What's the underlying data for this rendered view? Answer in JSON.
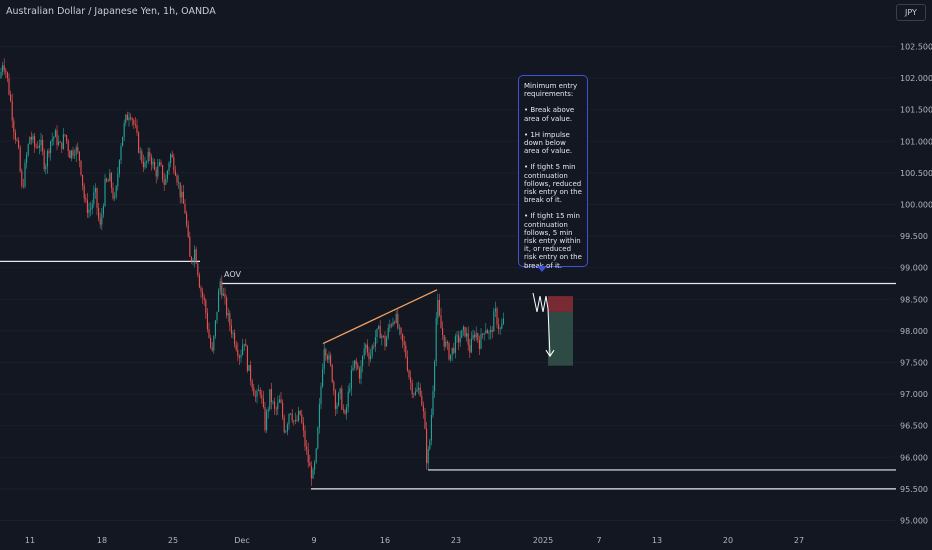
{
  "header": {
    "title": "Australian Dollar / Japanese Yen, 1h, OANDA",
    "currency": "JPY"
  },
  "annotations": {
    "aov_label": "AOV",
    "note_paragraphs": [
      "Minimum entry requirements:",
      "• Break above area of value.",
      "• 1H impulse down below area of value.",
      "• If tight 5 min continuation follows, reduced risk entry on the break of it.",
      "• If tight 15 min continuation follows, 5 min risk entry within it, or reduced risk entry on the break of it."
    ]
  },
  "colors": {
    "background": "#131722",
    "up_candle": "#26a69a",
    "down_candle": "#ef5350",
    "level_line": "#e6e8ee",
    "trendline": "#f5a25d",
    "stop_zone": "#7a2a33",
    "target_zone": "#2e4a44"
  },
  "chart_data": {
    "type": "candlestick",
    "ylim": [
      94.95,
      102.8
    ],
    "y_ticks": [
      "102.500",
      "102.000",
      "101.500",
      "101.000",
      "100.500",
      "100.000",
      "99.500",
      "99.000",
      "98.500",
      "98.000",
      "97.500",
      "97.000",
      "96.500",
      "96.000",
      "95.500",
      "95.000"
    ],
    "x_ticks": [
      "11",
      "18",
      "25",
      "Dec",
      "9",
      "16",
      "23",
      "2025",
      "7",
      "13",
      "20",
      "27"
    ],
    "price_path": [
      [
        0,
        102.0
      ],
      [
        3,
        102.3
      ],
      [
        6,
        102.1
      ],
      [
        10,
        101.7
      ],
      [
        14,
        101.2
      ],
      [
        18,
        100.9
      ],
      [
        22,
        100.2
      ],
      [
        26,
        100.7
      ],
      [
        30,
        101.1
      ],
      [
        35,
        100.9
      ],
      [
        40,
        101.0
      ],
      [
        45,
        100.6
      ],
      [
        50,
        101.0
      ],
      [
        55,
        101.1
      ],
      [
        60,
        100.9
      ],
      [
        65,
        101.1
      ],
      [
        70,
        100.8
      ],
      [
        75,
        100.9
      ],
      [
        80,
        100.7
      ],
      [
        85,
        100.0
      ],
      [
        90,
        99.9
      ],
      [
        95,
        100.2
      ],
      [
        100,
        99.6
      ],
      [
        105,
        100.3
      ],
      [
        110,
        100.4
      ],
      [
        115,
        100.0
      ],
      [
        120,
        100.9
      ],
      [
        125,
        101.3
      ],
      [
        130,
        101.5
      ],
      [
        135,
        101.2
      ],
      [
        140,
        100.8
      ],
      [
        145,
        100.6
      ],
      [
        150,
        100.8
      ],
      [
        155,
        100.5
      ],
      [
        160,
        100.6
      ],
      [
        165,
        100.3
      ],
      [
        170,
        100.8
      ],
      [
        175,
        100.6
      ],
      [
        180,
        100.2
      ],
      [
        185,
        99.9
      ],
      [
        190,
        99.1
      ],
      [
        195,
        99.3
      ],
      [
        200,
        98.7
      ],
      [
        205,
        98.4
      ],
      [
        208,
        98.0
      ],
      [
        212,
        97.6
      ],
      [
        216,
        98.2
      ],
      [
        220,
        98.8
      ],
      [
        224,
        98.5
      ],
      [
        228,
        98.2
      ],
      [
        232,
        98.0
      ],
      [
        236,
        97.8
      ],
      [
        240,
        97.6
      ],
      [
        244,
        97.9
      ],
      [
        248,
        97.4
      ],
      [
        252,
        97.2
      ],
      [
        256,
        96.9
      ],
      [
        260,
        97.1
      ],
      [
        265,
        96.5
      ],
      [
        270,
        97.0
      ],
      [
        275,
        96.7
      ],
      [
        280,
        96.9
      ],
      [
        285,
        96.4
      ],
      [
        290,
        96.8
      ],
      [
        295,
        96.5
      ],
      [
        300,
        96.7
      ],
      [
        305,
        96.2
      ],
      [
        310,
        95.8
      ],
      [
        313,
        95.7
      ],
      [
        316,
        96.0
      ],
      [
        320,
        96.9
      ],
      [
        324,
        97.8
      ],
      [
        328,
        97.6
      ],
      [
        332,
        97.3
      ],
      [
        336,
        96.8
      ],
      [
        340,
        97.0
      ],
      [
        345,
        96.6
      ],
      [
        350,
        97.2
      ],
      [
        355,
        97.5
      ],
      [
        360,
        97.3
      ],
      [
        365,
        97.8
      ],
      [
        370,
        97.6
      ],
      [
        375,
        97.9
      ],
      [
        380,
        98.0
      ],
      [
        385,
        97.8
      ],
      [
        390,
        98.1
      ],
      [
        395,
        98.25
      ],
      [
        400,
        97.9
      ],
      [
        405,
        97.7
      ],
      [
        410,
        97.2
      ],
      [
        415,
        97.0
      ],
      [
        420,
        97.1
      ],
      [
        424,
        96.6
      ],
      [
        427,
        95.9
      ],
      [
        430,
        96.3
      ],
      [
        434,
        97.4
      ],
      [
        437,
        98.5
      ],
      [
        440,
        98.1
      ],
      [
        445,
        97.8
      ],
      [
        450,
        97.6
      ],
      [
        455,
        97.8
      ],
      [
        460,
        97.9
      ],
      [
        465,
        98.0
      ],
      [
        470,
        97.7
      ],
      [
        475,
        98.0
      ],
      [
        480,
        97.8
      ],
      [
        485,
        98.1
      ],
      [
        490,
        97.9
      ],
      [
        495,
        98.3
      ],
      [
        500,
        98.0
      ],
      [
        505,
        98.2
      ]
    ],
    "levels": [
      {
        "name": "upper-support",
        "price": 99.1,
        "x_from": 0,
        "x_to": 200
      },
      {
        "name": "aov-line",
        "price": 98.75,
        "x_from": 222,
        "x_to": 896
      },
      {
        "name": "lower-support-1",
        "price": 95.8,
        "x_from": 428,
        "x_to": 896
      },
      {
        "name": "lower-support-2",
        "price": 95.5,
        "x_from": 311,
        "x_to": 896
      }
    ],
    "trendline": {
      "from": [
        323,
        97.8
      ],
      "to": [
        437,
        98.65
      ]
    },
    "position": {
      "entry": 98.3,
      "stop": 98.55,
      "target": 97.45
    },
    "projection": [
      [
        533,
        98.6
      ],
      [
        537,
        98.3
      ],
      [
        540,
        98.55
      ],
      [
        543,
        98.3
      ],
      [
        546,
        98.55
      ],
      [
        548,
        98.35
      ],
      [
        550,
        97.6
      ]
    ]
  }
}
